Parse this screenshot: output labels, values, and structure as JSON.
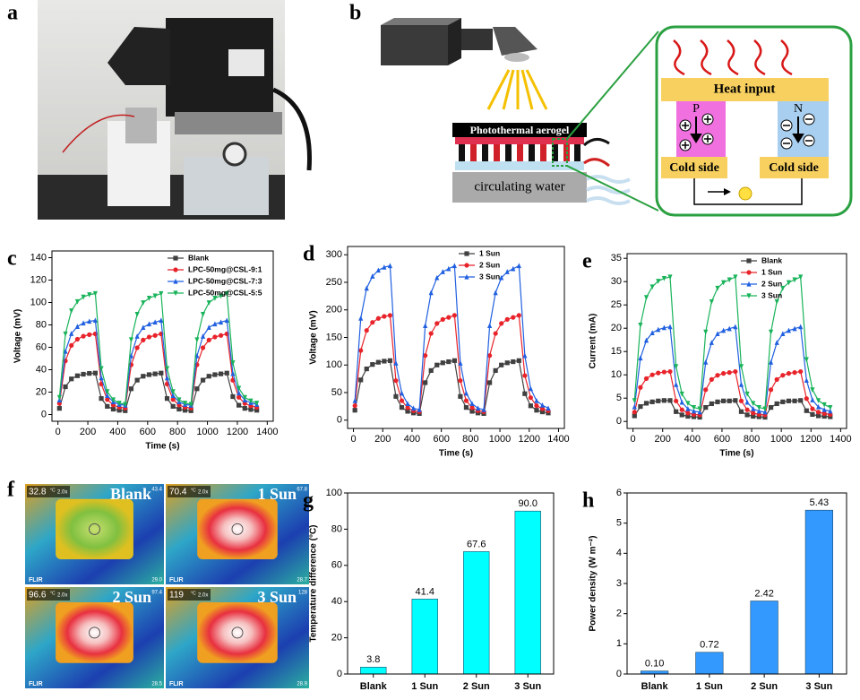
{
  "photo": {
    "panel": "a"
  },
  "diagram": {
    "panel": "b",
    "aerogel": "Photothermal aerogel",
    "water": "circulating water",
    "heat": "Heat input",
    "p": "P",
    "n": "N",
    "cold_left": "Cold side",
    "cold_right": "Cold side"
  },
  "thermal": {
    "panel": "f",
    "images": [
      {
        "label": "Blank",
        "spot_temp": "32.8",
        "unit": "°C",
        "zoom": "2.0x",
        "scale_high": "43.4",
        "scale_low": "29.0",
        "brand": "FLIR"
      },
      {
        "label": "1 Sun",
        "spot_temp": "70.4",
        "unit": "°C",
        "zoom": "2.0x",
        "scale_high": "67.8",
        "scale_low": "28.7",
        "brand": "FLIR"
      },
      {
        "label": "2 Sun",
        "spot_temp": "96.6",
        "unit": "°C",
        "zoom": "2.0x",
        "scale_high": "97.4",
        "scale_low": "28.5",
        "brand": "FLIR"
      },
      {
        "label": "3 Sun",
        "spot_temp": "119",
        "unit": "°C",
        "zoom": "2.0x",
        "scale_high": "128",
        "scale_low": "28.9",
        "brand": "FLIR"
      }
    ]
  },
  "chart_data": [
    {
      "type": "line",
      "panel": "c",
      "x_label": "Time (s)",
      "y_label": "Voltage (mV)",
      "legend": "upper right",
      "x": [
        10,
        50,
        90,
        130,
        170,
        210,
        250,
        290,
        330,
        370,
        410,
        450,
        490,
        530,
        570,
        610,
        650,
        690,
        730,
        770,
        810,
        850,
        890,
        930,
        970,
        1010,
        1050,
        1090,
        1130,
        1170,
        1210,
        1250,
        1290,
        1330
      ],
      "xlim": [
        -40,
        1440
      ],
      "xticks": [
        0,
        200,
        400,
        600,
        800,
        1000,
        1200,
        1400
      ],
      "ylim": [
        -6,
        146
      ],
      "yticks": [
        0,
        20,
        40,
        60,
        80,
        100,
        120,
        140
      ],
      "series": [
        {
          "name": "Blank",
          "color": "#404040",
          "marker": "square",
          "values": [
            5.5,
            24.8,
            31.8,
            34.6,
            36,
            36.7,
            37,
            14.3,
            7.3,
            4.8,
            3.8,
            3.4,
            23,
            30.7,
            34.2,
            35.6,
            36.3,
            37,
            14.3,
            7.3,
            4.8,
            3.8,
            3.4,
            23,
            30.7,
            34.2,
            35.6,
            36.3,
            37,
            16,
            8.3,
            5.5,
            4.5,
            3.8
          ]
        },
        {
          "name": "LPC-50mg@CSL-9:1",
          "color": "#e8232a",
          "marker": "circle",
          "values": [
            9.9,
            47.9,
            61.7,
            67.2,
            69.9,
            71.3,
            72,
            27.2,
            13.4,
            8.5,
            6.5,
            5.8,
            44.4,
            59.6,
            66.5,
            69.2,
            70.6,
            72,
            27.2,
            13.4,
            8.5,
            6.5,
            5.8,
            44.4,
            59.6,
            66.5,
            69.2,
            70.6,
            72,
            30.6,
            15.4,
            9.9,
            7.8,
            6.5
          ]
        },
        {
          "name": "LPC-50mg@CSL-7:3",
          "color": "#2060e0",
          "marker": "triangle",
          "values": [
            12.9,
            56.4,
            72.2,
            78.5,
            81.6,
            83.2,
            84,
            32.7,
            16.9,
            11.3,
            9,
            8.2,
            52.4,
            69.8,
            77.7,
            80.8,
            82.4,
            84,
            32.7,
            16.9,
            11.3,
            9,
            8.2,
            52.4,
            69.8,
            77.7,
            80.8,
            82.4,
            84,
            36.6,
            19.2,
            12.9,
            10.5,
            9
          ]
        },
        {
          "name": "LPC-50mg@CSL-5:5",
          "color": "#19b35a",
          "marker": "triangle-down",
          "values": [
            15.3,
            72,
            92.6,
            100.8,
            104.9,
            107,
            108,
            41.1,
            20.5,
            13.2,
            10.2,
            9.1,
            66.8,
            89.5,
            99.8,
            103.9,
            105.9,
            108,
            41.1,
            20.5,
            13.2,
            10.2,
            9.1,
            66.8,
            89.5,
            99.8,
            103.9,
            105.9,
            108,
            46.2,
            23.5,
            15.3,
            12.2,
            10.2
          ]
        }
      ]
    },
    {
      "type": "line",
      "panel": "d",
      "x_label": "Time (s)",
      "y_label": "Voltage (mV)",
      "legend": "upper right",
      "x": [
        10,
        50,
        90,
        130,
        170,
        210,
        250,
        290,
        330,
        370,
        410,
        450,
        490,
        530,
        570,
        610,
        650,
        690,
        730,
        770,
        810,
        850,
        890,
        930,
        970,
        1010,
        1050,
        1090,
        1130,
        1170,
        1210,
        1250,
        1290,
        1330
      ],
      "xlim": [
        -40,
        1440
      ],
      "xticks": [
        0,
        200,
        400,
        600,
        800,
        1000,
        1200,
        1400
      ],
      "ylim": [
        -15,
        315
      ],
      "yticks": [
        0,
        50,
        100,
        150,
        200,
        250,
        300
      ],
      "series": [
        {
          "name": "1 Sun",
          "color": "#404040",
          "marker": "square",
          "values": [
            18,
            73,
            93,
            101,
            105,
            107,
            108,
            43,
            23,
            16,
            13,
            12,
            68,
            90,
            100,
            104,
            106,
            108,
            43,
            23,
            16,
            13,
            12,
            68,
            90,
            100,
            104,
            106,
            108,
            48,
            26,
            18,
            15,
            13
          ]
        },
        {
          "name": "2 Sun",
          "color": "#e8232a",
          "marker": "circle",
          "values": [
            26.2,
            126.3,
            162.7,
            177.3,
            184.5,
            188.2,
            190,
            71.7,
            35.3,
            22.6,
            17.1,
            15.3,
            117.2,
            157.2,
            175.4,
            182.7,
            186.4,
            190,
            71.7,
            35.3,
            22.6,
            17.1,
            15.3,
            117.2,
            157.2,
            175.4,
            182.7,
            186.4,
            190,
            80.8,
            40.8,
            26.2,
            20.7,
            17.1
          ]
        },
        {
          "name": "3 Sun",
          "color": "#2060e0",
          "marker": "triangle",
          "values": [
            35.2,
            184.8,
            239.2,
            261,
            271.8,
            277.3,
            280,
            103.2,
            48.8,
            29.8,
            21.6,
            18.9,
            171.2,
            231,
            258.2,
            269.1,
            274.6,
            280,
            103.2,
            48.8,
            29.8,
            21.6,
            18.9,
            171.2,
            231,
            258.2,
            269.1,
            274.6,
            280,
            116.8,
            57,
            35.2,
            27,
            21.6
          ]
        }
      ]
    },
    {
      "type": "line",
      "panel": "e",
      "x_label": "Time (s)",
      "y_label": "Current (mA)",
      "legend": "upper right",
      "x": [
        10,
        50,
        90,
        130,
        170,
        210,
        250,
        290,
        330,
        370,
        410,
        450,
        490,
        530,
        570,
        610,
        650,
        690,
        730,
        770,
        810,
        850,
        890,
        930,
        970,
        1010,
        1050,
        1090,
        1130,
        1170,
        1210,
        1250,
        1290,
        1330
      ],
      "xlim": [
        -40,
        1440
      ],
      "xticks": [
        0,
        200,
        400,
        600,
        800,
        1000,
        1200,
        1400
      ],
      "ylim": [
        -1.5,
        36
      ],
      "yticks": [
        0,
        5,
        10,
        15,
        20,
        25,
        30,
        35
      ],
      "series": [
        {
          "name": "Blank",
          "color": "#404040",
          "marker": "square",
          "values": [
            1.2,
            3.2,
            3.9,
            4.2,
            4.4,
            4.5,
            4.5,
            2.1,
            1.4,
            1.1,
            1,
            0.9,
            3,
            3.8,
            4.2,
            4.4,
            4.4,
            4.5,
            2.1,
            1.4,
            1.1,
            1,
            0.9,
            3,
            3.8,
            4.2,
            4.4,
            4.4,
            4.5,
            2.3,
            1.5,
            1.2,
            1.1,
            1
          ]
        },
        {
          "name": "1 Sun",
          "color": "#e8232a",
          "marker": "circle",
          "values": [
            2,
            7.3,
            9.2,
            10,
            10.4,
            10.6,
            10.7,
            4.4,
            2.5,
            1.8,
            1.5,
            1.4,
            6.8,
            9,
            9.9,
            10.3,
            10.5,
            10.7,
            4.4,
            2.5,
            1.8,
            1.5,
            1.4,
            6.8,
            9,
            9.9,
            10.3,
            10.5,
            10.7,
            4.9,
            2.7,
            2,
            1.7,
            1.5
          ]
        },
        {
          "name": "2 Sun",
          "color": "#2060e0",
          "marker": "triangle",
          "values": [
            3.1,
            13.6,
            17.4,
            19,
            19.7,
            20.1,
            20.3,
            7.9,
            4.1,
            2.7,
            2.2,
            2,
            12.7,
            16.9,
            18.8,
            19.5,
            19.9,
            20.3,
            7.9,
            4.1,
            2.7,
            2.2,
            2,
            12.7,
            16.9,
            18.8,
            19.5,
            19.9,
            20.3,
            8.8,
            4.6,
            3.1,
            2.5,
            2.2
          ]
        },
        {
          "name": "3 Sun",
          "color": "#19b35a",
          "marker": "triangle-down",
          "values": [
            4.5,
            20.7,
            26.6,
            28.9,
            30.1,
            30.7,
            31,
            11.8,
            5.9,
            3.9,
            3,
            2.7,
            19.2,
            25.7,
            28.6,
            29.8,
            30.4,
            31,
            11.8,
            5.9,
            3.9,
            3,
            2.7,
            19.2,
            25.7,
            28.6,
            29.8,
            30.4,
            31,
            13.3,
            6.8,
            4.5,
            3.6,
            3
          ]
        }
      ]
    },
    {
      "type": "bar",
      "panel": "g",
      "y_label": "Temperature difference (°C)",
      "categories": [
        "Blank",
        "1 Sun",
        "2 Sun",
        "3 Sun"
      ],
      "values": [
        3.8,
        41.4,
        67.6,
        90
      ],
      "value_labels": [
        "3.8",
        "41.4",
        "67.6",
        "90.0"
      ],
      "color": "#00ffff",
      "ylim": [
        0,
        100
      ],
      "yticks": [
        0,
        20,
        40,
        60,
        80,
        100
      ]
    },
    {
      "type": "bar",
      "panel": "h",
      "y_label": "Power density (W m⁻²)",
      "categories": [
        "Blank",
        "1 Sun",
        "2 Sun",
        "3 Sun"
      ],
      "values": [
        0.1,
        0.72,
        2.42,
        5.43
      ],
      "value_labels": [
        "0.10",
        "0.72",
        "2.42",
        "5.43"
      ],
      "color": "#3399ff",
      "ylim": [
        0,
        6
      ],
      "yticks": [
        0,
        1,
        2,
        3,
        4,
        5,
        6
      ]
    }
  ]
}
